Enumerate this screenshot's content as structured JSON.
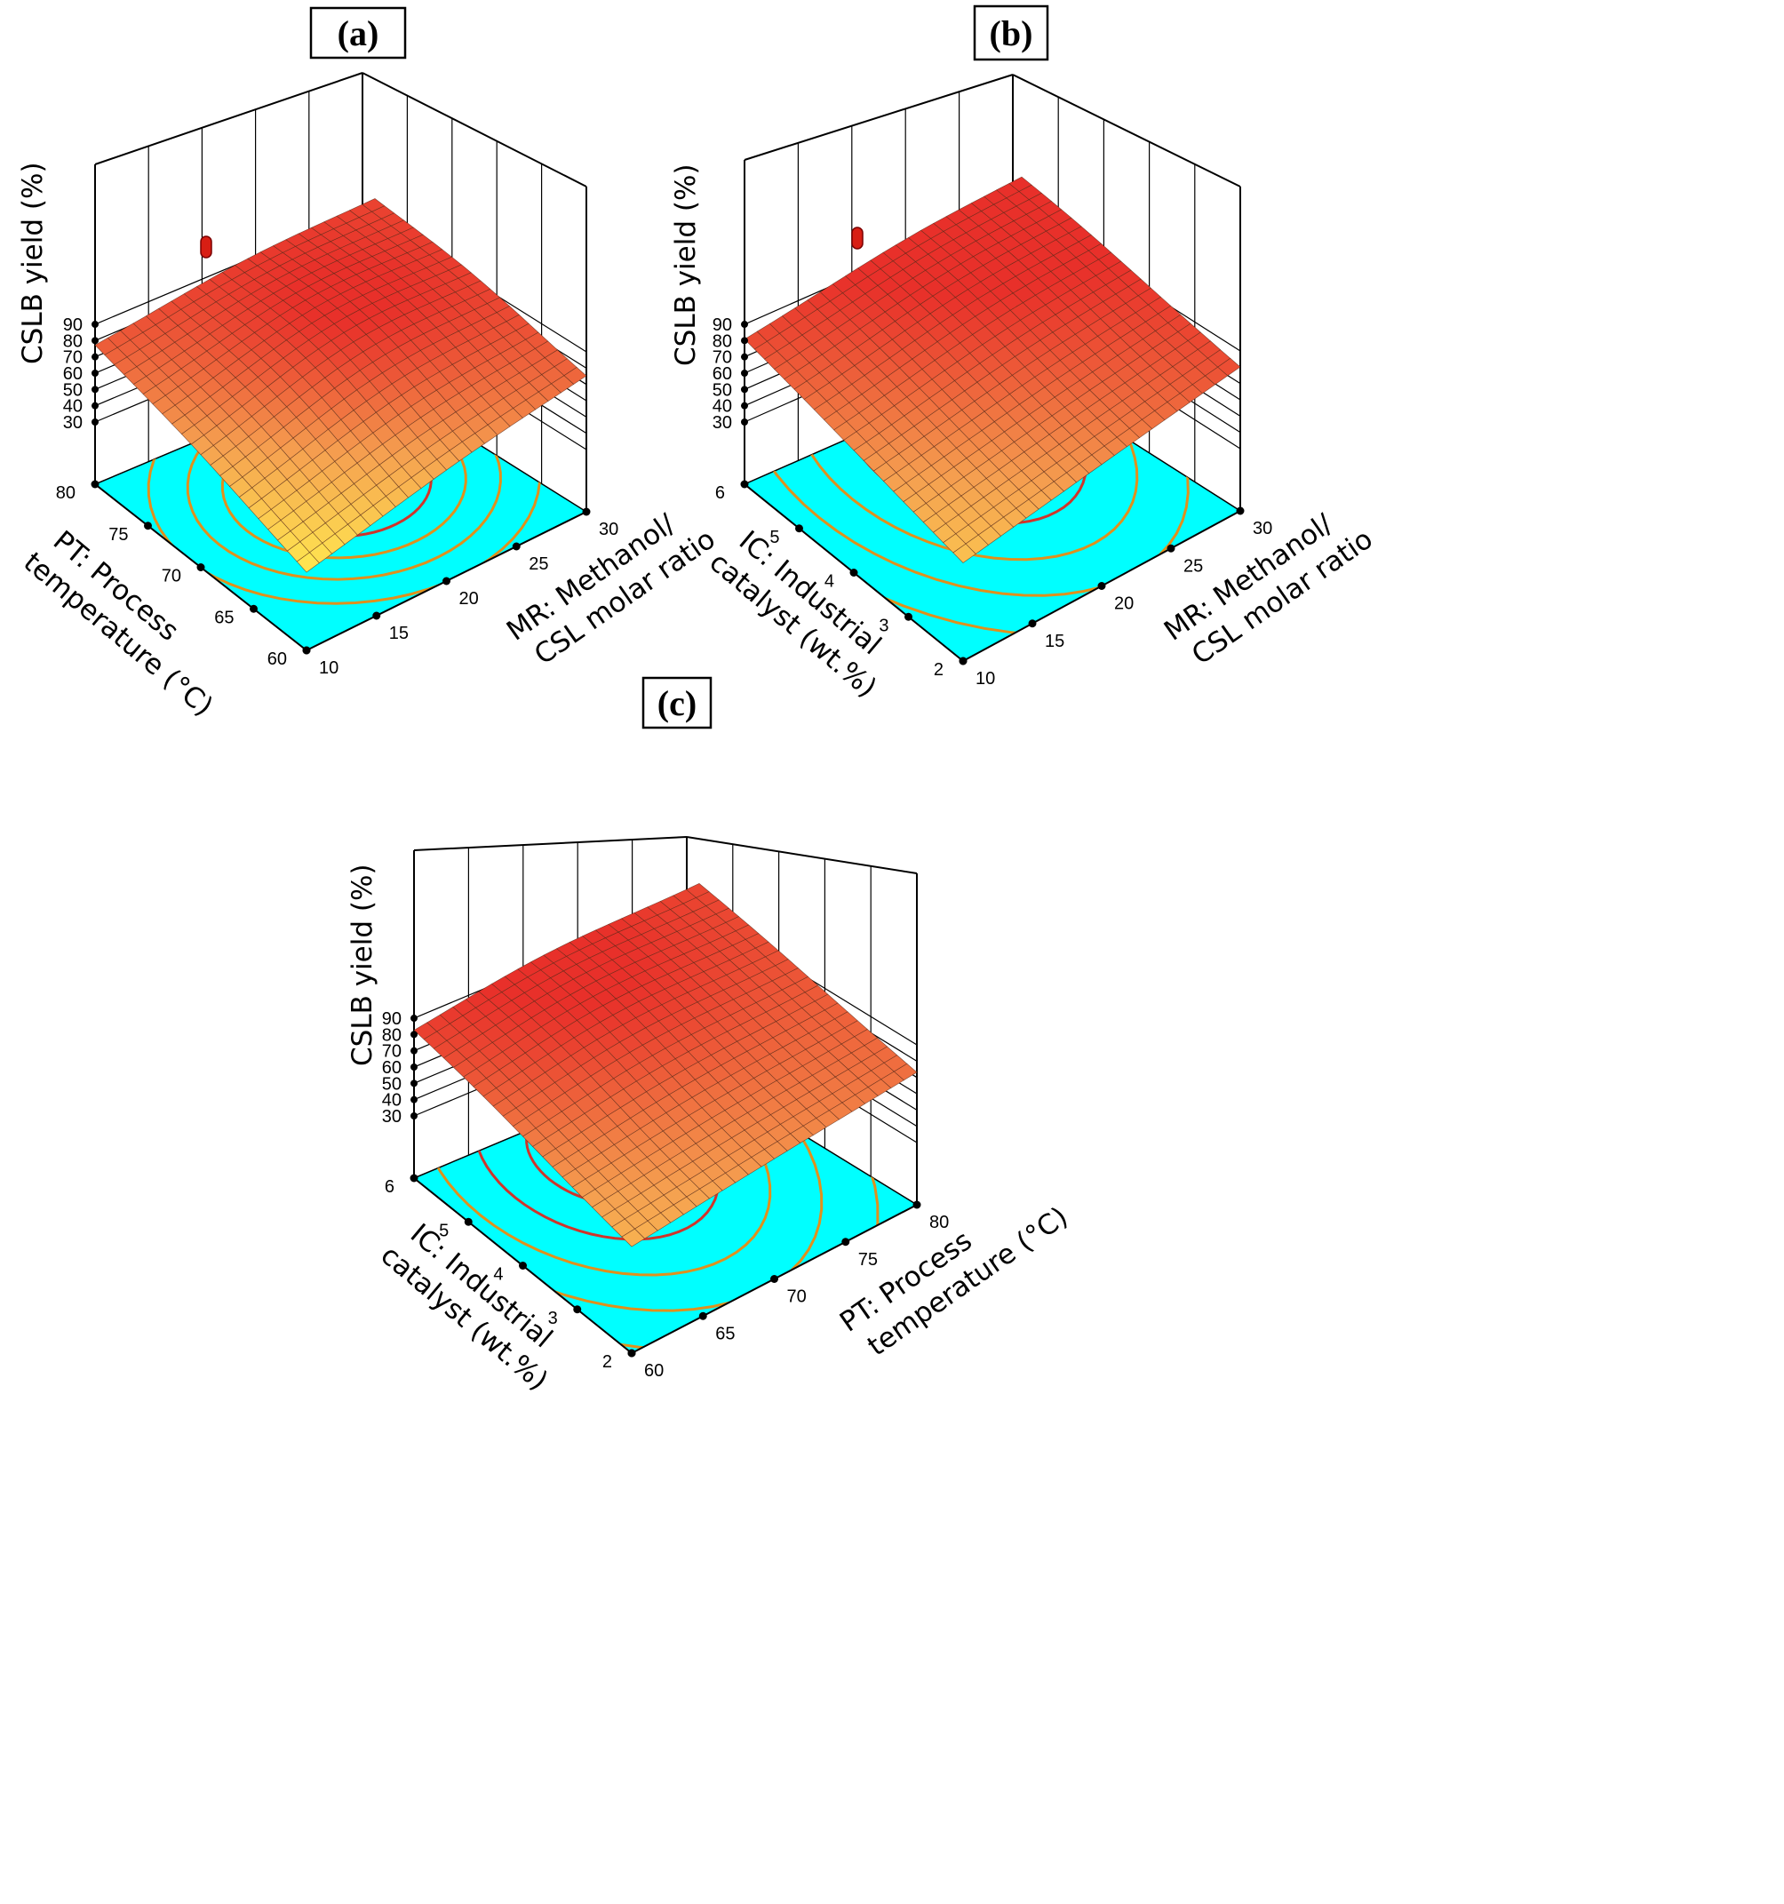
{
  "figure": {
    "panel_labels": [
      "(a)",
      "(b)",
      "(c)"
    ]
  },
  "chart_data": [
    {
      "type": "surface",
      "panel": "(a)",
      "zlabel": "CSLB yield (%)",
      "zlim": [
        30,
        90
      ],
      "z_ticks": [
        "30",
        "40",
        "50",
        "60",
        "70",
        "80",
        "90"
      ],
      "left_axis": {
        "label": [
          "PT: Process",
          "temperature (°C)"
        ],
        "ticks": [
          "60",
          "65",
          "70",
          "75",
          "80"
        ],
        "range": [
          60,
          80
        ]
      },
      "right_axis": {
        "label": [
          "MR: Methanol/",
          "CSL molar ratio"
        ],
        "ticks": [
          "10",
          "15",
          "20",
          "25",
          "30"
        ],
        "range": [
          10,
          30
        ]
      },
      "surface_corners": {
        "PT80_MR10": 76,
        "PT60_MR10": 39,
        "PT60_MR30": 74,
        "PT80_MR30": 80
      },
      "peak": {
        "PT": 71,
        "MR": 21,
        "yield": 85
      },
      "design_point": {
        "yield": 72
      },
      "contour_base_color": "#00ffff",
      "surface_colors": {
        "low": "#ffe850",
        "mid": "#f5a050",
        "high": "#e8302a"
      }
    },
    {
      "type": "surface",
      "panel": "(b)",
      "zlabel": "CSLB yield (%)",
      "zlim": [
        30,
        90
      ],
      "z_ticks": [
        "30",
        "40",
        "50",
        "60",
        "70",
        "80",
        "90"
      ],
      "left_axis": {
        "label": [
          "IC: Industrial",
          "catalyst (wt.%)"
        ],
        "ticks": [
          "2",
          "3",
          "4",
          "5",
          "6"
        ],
        "range": [
          2,
          6
        ]
      },
      "right_axis": {
        "label": [
          "MR: Methanol/",
          "CSL molar ratio"
        ],
        "ticks": [
          "10",
          "15",
          "20",
          "25",
          "30"
        ],
        "range": [
          10,
          30
        ]
      },
      "surface_corners": {
        "IC6_MR10": 80,
        "IC2_MR10": 52,
        "IC2_MR30": 80,
        "IC6_MR30": 86
      },
      "peak": {
        "IC": 5,
        "MR": 22,
        "yield": 87
      },
      "design_point": {
        "yield": 72
      },
      "contour_base_color": "#00ffff",
      "surface_colors": {
        "low": "#ffe850",
        "mid": "#f5a050",
        "high": "#e8302a"
      }
    },
    {
      "type": "surface",
      "panel": "(c)",
      "zlabel": "CSLB yield (%)",
      "zlim": [
        30,
        90
      ],
      "z_ticks": [
        "30",
        "40",
        "50",
        "60",
        "70",
        "80",
        "90"
      ],
      "left_axis": {
        "label": [
          "IC: Industrial",
          "catalyst (wt.%)"
        ],
        "ticks": [
          "2",
          "3",
          "4",
          "5",
          "6"
        ],
        "range": [
          2,
          6
        ]
      },
      "right_axis": {
        "label": [
          "PT: Process",
          "temperature (°C)"
        ],
        "ticks": [
          "60",
          "65",
          "70",
          "75",
          "80"
        ],
        "range": [
          60,
          80
        ]
      },
      "surface_corners": {
        "IC6_PT60": 80,
        "IC2_PT60": 57,
        "IC2_PT80": 73,
        "IC6_PT80": 80
      },
      "peak": {
        "IC": 5,
        "PT": 69,
        "yield": 86
      },
      "design_point": null,
      "contour_base_color": "#00ffff",
      "surface_colors": {
        "low": "#ffe850",
        "mid": "#f5a050",
        "high": "#e8302a"
      }
    }
  ]
}
